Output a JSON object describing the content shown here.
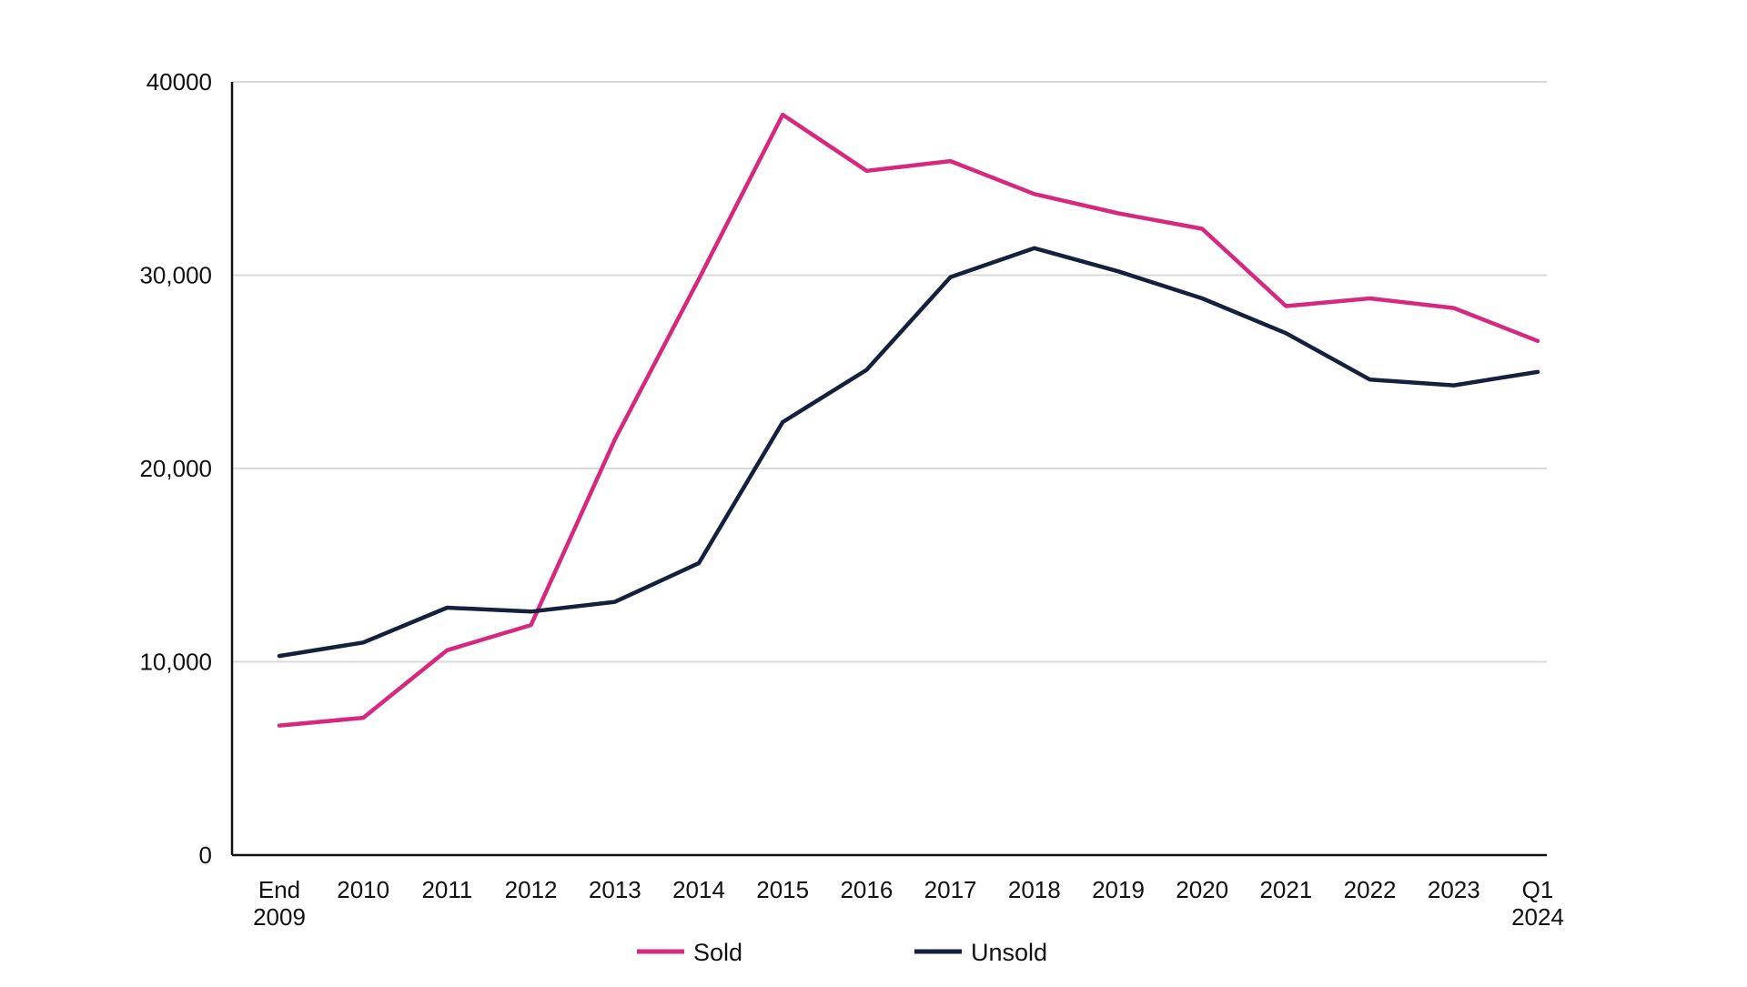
{
  "chart_data": {
    "type": "line",
    "title": "",
    "xlabel": "",
    "ylabel": "",
    "categories": [
      [
        "End",
        "2009"
      ],
      [
        "2010"
      ],
      [
        "2011"
      ],
      [
        "2012"
      ],
      [
        "2013"
      ],
      [
        "2014"
      ],
      [
        "2015"
      ],
      [
        "2016"
      ],
      [
        "2017"
      ],
      [
        "2018"
      ],
      [
        "2019"
      ],
      [
        "2020"
      ],
      [
        "2021"
      ],
      [
        "2022"
      ],
      [
        "2023"
      ],
      [
        "Q1",
        "2024"
      ]
    ],
    "ylim": [
      0,
      40000
    ],
    "y_ticks": [
      {
        "value": 0,
        "label": "0"
      },
      {
        "value": 10000,
        "label": "10,000"
      },
      {
        "value": 20000,
        "label": "20,000"
      },
      {
        "value": 30000,
        "label": "30,000"
      },
      {
        "value": 40000,
        "label": "40000"
      }
    ],
    "grid": true,
    "legend_position": "bottom",
    "series": [
      {
        "name": "Sold",
        "color": "#d6287f",
        "values": [
          6700,
          7100,
          10600,
          11900,
          21500,
          29800,
          38300,
          35400,
          35900,
          34200,
          33200,
          32400,
          28400,
          28800,
          28300,
          26600
        ]
      },
      {
        "name": "Unsold",
        "color": "#14213d",
        "values": [
          10300,
          11000,
          12800,
          12600,
          13100,
          15100,
          22400,
          25100,
          29900,
          31400,
          30200,
          28800,
          27000,
          24600,
          24300,
          25000
        ]
      }
    ]
  },
  "colors": {
    "axis": "#111111",
    "grid": "#d9d9d9"
  }
}
